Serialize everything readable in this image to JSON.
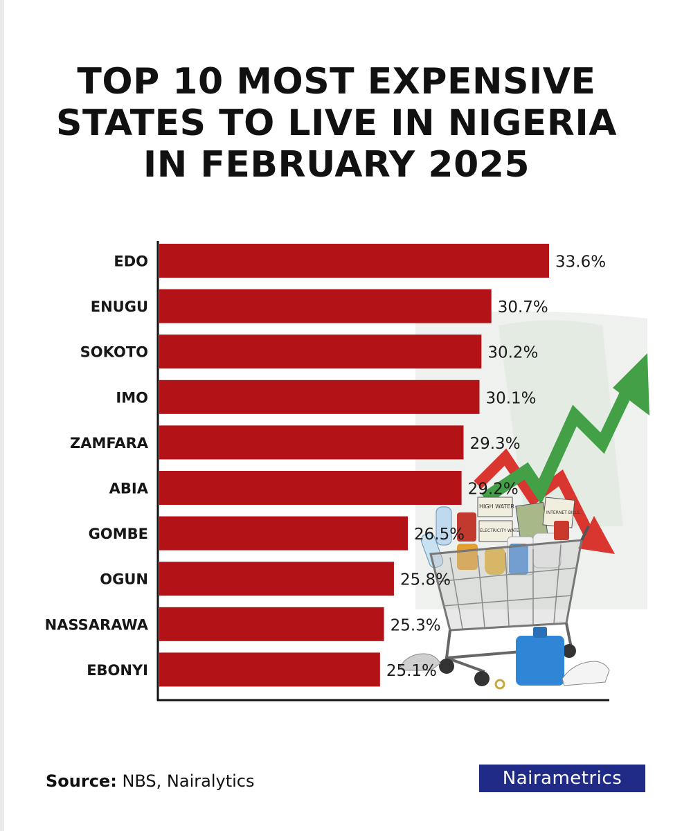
{
  "title_lines": [
    "TOP 10 MOST EXPENSIVE",
    "STATES TO LIVE IN NIGERIA",
    "IN FEBRUARY 2025"
  ],
  "source": {
    "label": "Source:",
    "text": "NBS, Nairalytics"
  },
  "brand": "Nairametrics",
  "colors": {
    "bar": "#b31217",
    "axis": "#111111"
  },
  "illustration_labels": [
    "HIGH WATER",
    "ELECTRICITY WATER",
    "INTERNET BILLS"
  ],
  "chart_data": {
    "type": "bar",
    "orientation": "horizontal",
    "categories": [
      "EDO",
      "ENUGU",
      "SOKOTO",
      "IMO",
      "ZAMFARA",
      "ABIA",
      "GOMBE",
      "OGUN",
      "NASSARAWA",
      "EBONYI"
    ],
    "values": [
      33.6,
      30.7,
      30.2,
      30.1,
      29.3,
      29.2,
      26.5,
      25.8,
      25.3,
      25.1
    ],
    "value_labels": [
      "33.6%",
      "30.7%",
      "30.2%",
      "30.1%",
      "29.3%",
      "29.2%",
      "26.5%",
      "25.8%",
      "25.3%",
      "25.1%"
    ],
    "xlim": [
      14,
      35
    ],
    "grid": false,
    "legend": "none"
  }
}
